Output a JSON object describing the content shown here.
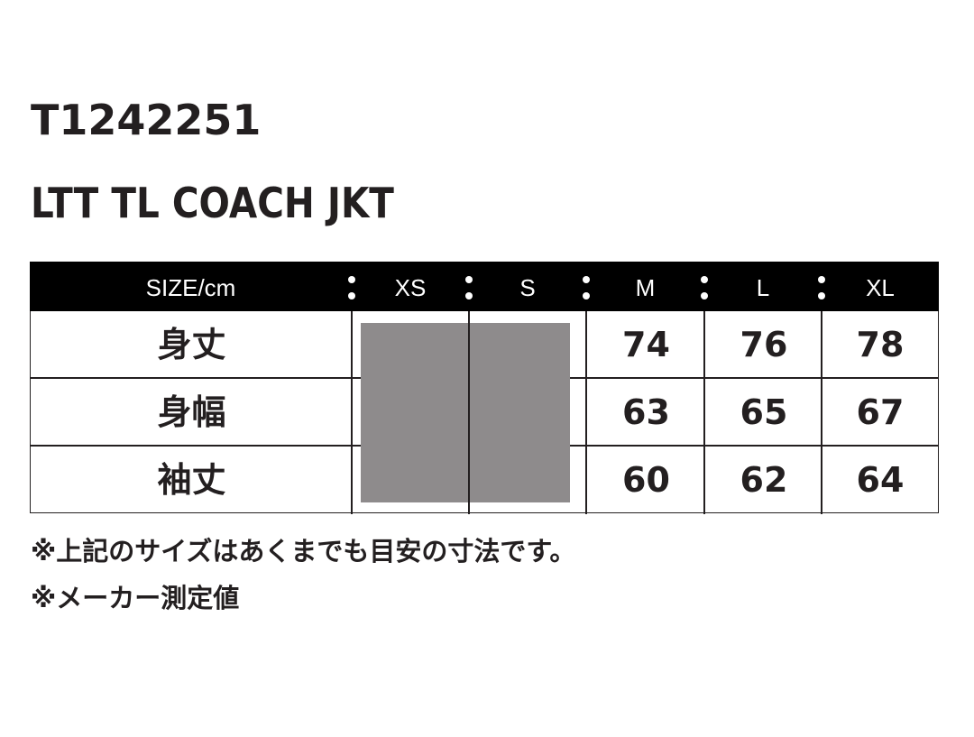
{
  "product": {
    "code": "T1242251",
    "name": "LTT TL COACH JKT"
  },
  "table": {
    "header_label": "SIZE/cm",
    "sizes": [
      "XS",
      "S",
      "M",
      "L",
      "XL"
    ],
    "rows": [
      {
        "label": "身丈",
        "values": [
          "",
          "",
          "74",
          "76",
          "78"
        ]
      },
      {
        "label": "身幅",
        "values": [
          "",
          "",
          "63",
          "65",
          "67"
        ]
      },
      {
        "label": "袖丈",
        "values": [
          "",
          "",
          "60",
          "62",
          "64"
        ]
      }
    ],
    "unavailable_fill_color": "#8e8b8c"
  },
  "notes": [
    "※上記のサイズはあくまでも目安の寸法です。",
    "※メーカー測定値"
  ]
}
